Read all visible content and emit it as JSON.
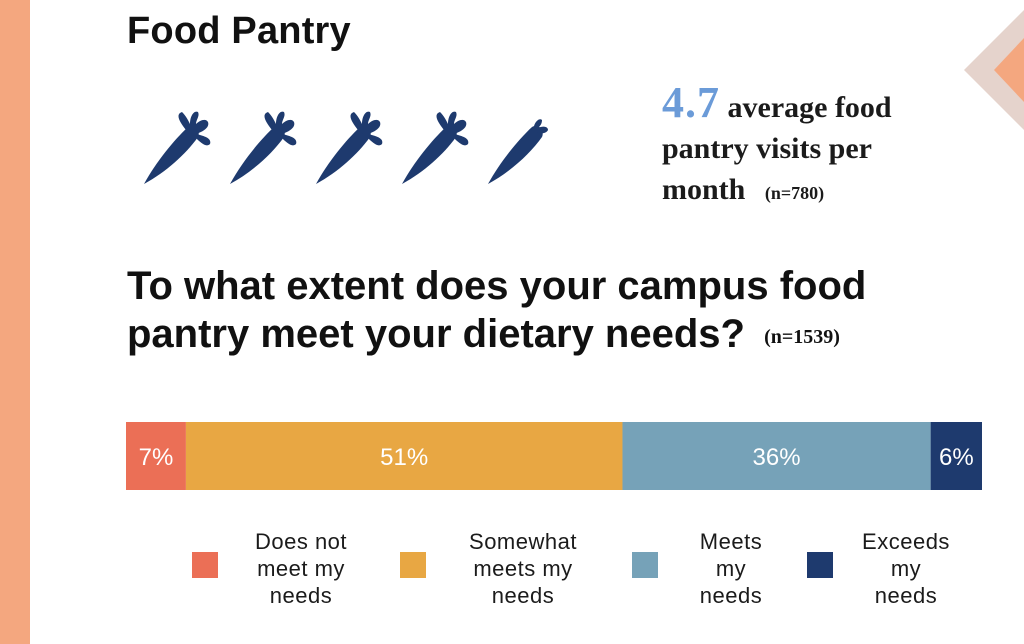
{
  "header": {
    "title": "Food Pantry"
  },
  "visits": {
    "icon_name": "carrot-icon",
    "carrot_count": 5,
    "value": "4.7",
    "label": "average food pantry visits per month",
    "n": "(n=780)",
    "icon_color": "#1E3A6E",
    "value_color": "#6B9BD8"
  },
  "question": {
    "text": "To what extent does your campus food pantry meet your dietary needs?",
    "n": "(n=1539)"
  },
  "chart_data": {
    "type": "bar",
    "orientation": "horizontal-stacked",
    "title": "To what extent does your campus food pantry meet your dietary needs?",
    "n": "(n=1539)",
    "categories": [
      "Does not meet my needs",
      "Somewhat meets my needs",
      "Meets my needs",
      "Exceeds my needs"
    ],
    "values": [
      7,
      51,
      36,
      6
    ],
    "labels": [
      "7%",
      "51%",
      "36%",
      "6%"
    ],
    "colors": [
      "#EB6F56",
      "#E8A743",
      "#76A2B8",
      "#1E3A6E"
    ],
    "xlim": [
      0,
      100
    ],
    "legend": "bottom"
  },
  "legend": [
    {
      "lines": [
        "Does not",
        "meet my",
        "needs"
      ],
      "color": "#EB6F56"
    },
    {
      "lines": [
        "Somewhat",
        "meets my",
        "needs"
      ],
      "color": "#E8A743"
    },
    {
      "lines": [
        "Meets",
        "my",
        "needs"
      ],
      "color": "#76A2B8"
    },
    {
      "lines": [
        "Exceeds",
        "my",
        "needs"
      ],
      "color": "#1E3A6E"
    }
  ],
  "colors": {
    "accent_stripe": "#F4A77F",
    "deco_tan": "#E5D3CC",
    "deco_orange": "#F4A77F"
  }
}
